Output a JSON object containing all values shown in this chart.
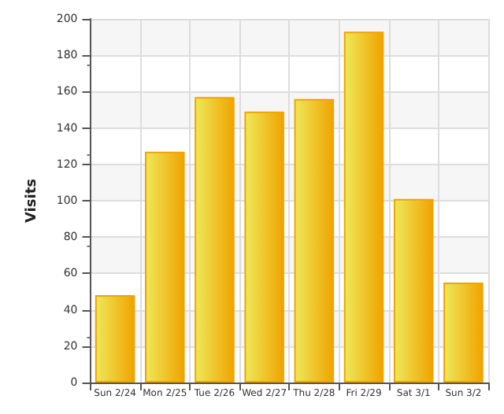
{
  "chart_data": {
    "type": "bar",
    "ylabel": "Visits",
    "categories": [
      "Sun 2/24",
      "Mon 2/25",
      "Tue 2/26",
      "Wed 2/27",
      "Thu 2/28",
      "Fri 2/29",
      "Sat 3/1",
      "Sun 3/2"
    ],
    "values": [
      48,
      127,
      157,
      149,
      156,
      193,
      101,
      55
    ],
    "color": "#f0a400",
    "ylim": [
      0,
      200
    ],
    "yticks": [
      0,
      20,
      40,
      60,
      80,
      100,
      120,
      140,
      160,
      180,
      200
    ],
    "grid": true
  }
}
